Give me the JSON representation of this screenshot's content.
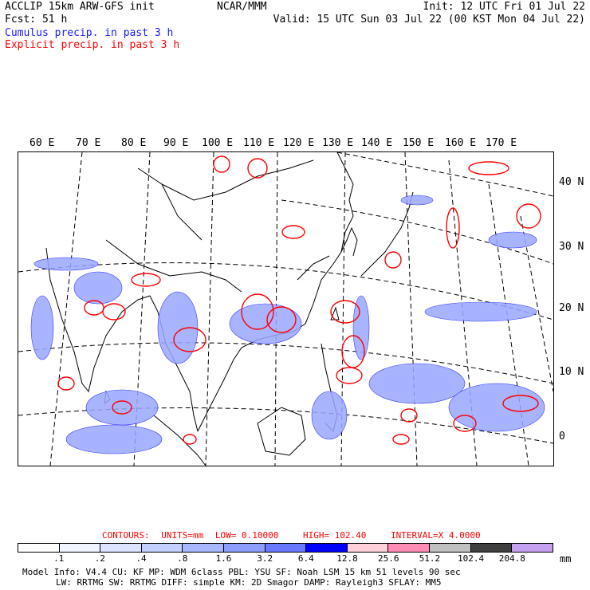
{
  "header": {
    "left_line1": "ACCLIP 15km ARW-GFS init",
    "left_line2": "Fcst:   51 h",
    "center": "NCAR/MMM",
    "init": "Init: 12 UTC Fri 01 Jul 22",
    "valid": "Valid: 15 UTC Sun 03 Jul 22 (00 KST Mon 04 Jul 22)",
    "cumulus_label": "Cumulus precip. in past 3 h",
    "explicit_label": "Explicit precip. in past 3 h"
  },
  "colors": {
    "cumulus": "#1a1aff",
    "explicit": "#ff0000"
  },
  "map": {
    "lon_labels": [
      "60 E",
      "70 E",
      "80 E",
      "90 E",
      "100 E",
      "110 E",
      "120 E",
      "130 E",
      "140 E",
      "150 E",
      "160 E",
      "170 E"
    ],
    "lat_labels": [
      "40 N",
      "30 N",
      "20 N",
      "10 N",
      "0"
    ]
  },
  "contour_info": {
    "contours": "CONTOURS:",
    "units": "UNITS=mm",
    "low": "LOW= 0.10000",
    "high": "HIGH=  102.40",
    "interval": "INTERVAL=X  4.0000"
  },
  "colorbar": {
    "unit": "mm",
    "ticks": [
      ".1",
      ".2",
      ".4",
      ".8",
      "1.6",
      "3.2",
      "6.4",
      "12.8",
      "25.6",
      "51.2",
      "102.4",
      "204.8"
    ],
    "colors": [
      "#ffffff",
      "#f0f4ff",
      "#dce4ff",
      "#c4d0ff",
      "#a8b8ff",
      "#8c9cff",
      "#6a78ff",
      "#0000ff",
      "#ffd0d8",
      "#ff8cb4",
      "#c0c0c0",
      "#404040",
      "#c8a0f0"
    ]
  },
  "footer": {
    "line1": "Model Info: V4.4    CU: KF     MP: WDM 6class  PBL: YSU     SF: Noah LSM    15 km   51 levels   90 sec",
    "line2": "LW: RRTMG   SW: RRTMG  DIFF: simple KM: 2D Smagor DAMP: Rayleigh3  SFLAY: MM5"
  }
}
